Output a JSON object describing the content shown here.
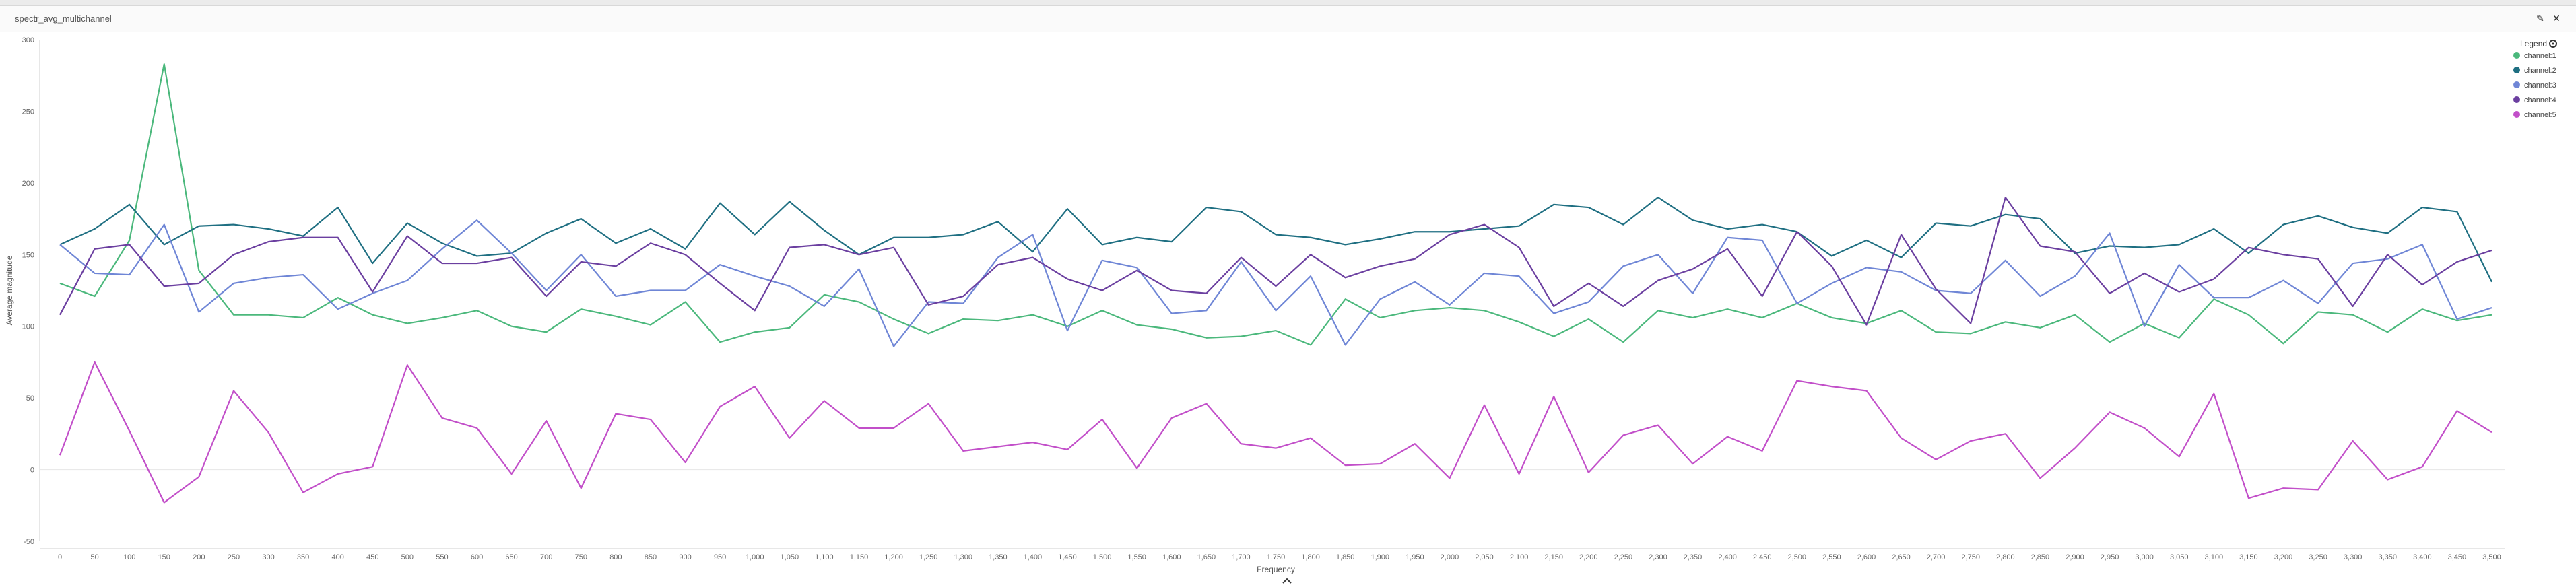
{
  "panel": {
    "title": "spectr_avg_multichannel",
    "edit_icon": "pencil-icon",
    "close_icon": "close-icon",
    "scroll_icon": "chevron-up-icon"
  },
  "chart_data": {
    "type": "line",
    "title": "",
    "xlabel": "Frequency",
    "ylabel": "Average magnitude",
    "xlim": [
      0,
      3500
    ],
    "ylim": [
      -50,
      300
    ],
    "yticks": [
      -50,
      0,
      50,
      100,
      150,
      200,
      250,
      300
    ],
    "xtick_step": 50,
    "grid": false,
    "legend_title": "Legend",
    "legend_placement": "top-right",
    "x": [
      0,
      50,
      100,
      150,
      200,
      250,
      300,
      350,
      400,
      450,
      500,
      550,
      600,
      650,
      700,
      750,
      800,
      850,
      900,
      950,
      1000,
      1050,
      1100,
      1150,
      1200,
      1250,
      1300,
      1350,
      1400,
      1450,
      1500,
      1550,
      1600,
      1650,
      1700,
      1750,
      1800,
      1850,
      1900,
      1950,
      2000,
      2050,
      2100,
      2150,
      2200,
      2250,
      2300,
      2350,
      2400,
      2450,
      2500,
      2550,
      2600,
      2650,
      2700,
      2750,
      2800,
      2850,
      2900,
      2950,
      3000,
      3050,
      3100,
      3150,
      3200,
      3250,
      3300,
      3350,
      3400,
      3450,
      3500
    ],
    "series": [
      {
        "name": "channel:1",
        "color": "#4bb87c",
        "values": [
          130,
          121,
          160,
          283,
          139,
          108,
          108,
          106,
          120,
          108,
          102,
          106,
          111,
          100,
          96,
          112,
          107,
          101,
          117,
          89,
          96,
          99,
          122,
          117,
          105,
          95,
          105,
          104,
          108,
          100,
          111,
          101,
          98,
          92,
          93,
          97,
          87,
          119,
          106,
          111,
          113,
          111,
          103,
          93,
          105,
          89,
          111,
          106,
          112,
          106,
          116,
          106,
          102,
          111,
          96,
          95,
          103,
          99,
          108,
          89,
          102,
          92,
          119,
          108,
          88,
          110,
          108,
          96,
          112,
          104,
          108
        ]
      },
      {
        "name": "channel:2",
        "color": "#1f6f82",
        "values": [
          157,
          168,
          185,
          157,
          170,
          171,
          168,
          163,
          183,
          144,
          172,
          158,
          149,
          151,
          165,
          175,
          158,
          168,
          154,
          186,
          164,
          187,
          167,
          150,
          162,
          162,
          164,
          173,
          152,
          182,
          157,
          162,
          159,
          183,
          180,
          164,
          162,
          157,
          161,
          166,
          166,
          168,
          170,
          185,
          183,
          171,
          190,
          174,
          168,
          171,
          166,
          149,
          160,
          148,
          172,
          170,
          178,
          175,
          151,
          156,
          155,
          157,
          168,
          151,
          171,
          177,
          169,
          165,
          183,
          180,
          131
        ]
      },
      {
        "name": "channel:3",
        "color": "#6f86d6",
        "values": [
          157,
          137,
          136,
          171,
          110,
          130,
          134,
          136,
          112,
          123,
          132,
          154,
          174,
          151,
          125,
          150,
          121,
          125,
          125,
          143,
          135,
          128,
          114,
          140,
          86,
          117,
          116,
          148,
          164,
          97,
          146,
          141,
          109,
          111,
          145,
          111,
          135,
          87,
          119,
          131,
          115,
          137,
          135,
          109,
          117,
          142,
          150,
          123,
          162,
          160,
          116,
          130,
          141,
          138,
          125,
          123,
          146,
          121,
          135,
          165,
          100,
          143,
          120,
          120,
          132,
          116,
          144,
          147,
          157,
          105,
          113
        ]
      },
      {
        "name": "channel:4",
        "color": "#6b3fa0",
        "values": [
          108,
          154,
          157,
          128,
          130,
          150,
          159,
          162,
          162,
          124,
          163,
          144,
          144,
          148,
          121,
          145,
          142,
          158,
          150,
          130,
          111,
          155,
          157,
          150,
          155,
          115,
          121,
          143,
          148,
          133,
          125,
          139,
          125,
          123,
          148,
          128,
          150,
          134,
          142,
          147,
          164,
          171,
          155,
          114,
          130,
          114,
          132,
          140,
          154,
          121,
          166,
          142,
          101,
          164,
          126,
          102,
          190,
          156,
          152,
          123,
          137,
          124,
          133,
          155,
          150,
          147,
          114,
          150,
          129,
          145,
          153
        ]
      },
      {
        "name": "channel:5",
        "color": "#c24fc9",
        "values": [
          10,
          75,
          27,
          -23,
          -5,
          55,
          26,
          -16,
          -3,
          2,
          73,
          36,
          29,
          -3,
          34,
          -13,
          39,
          35,
          5,
          44,
          58,
          22,
          48,
          29,
          29,
          46,
          13,
          16,
          19,
          14,
          35,
          1,
          36,
          46,
          18,
          15,
          22,
          3,
          4,
          18,
          -6,
          45,
          -3,
          51,
          -2,
          24,
          31,
          4,
          23,
          13,
          62,
          58,
          55,
          22,
          7,
          20,
          25,
          -6,
          15,
          40,
          29,
          9,
          53,
          -20,
          -13,
          -14,
          20,
          -7,
          2,
          41,
          26
        ]
      }
    ]
  }
}
